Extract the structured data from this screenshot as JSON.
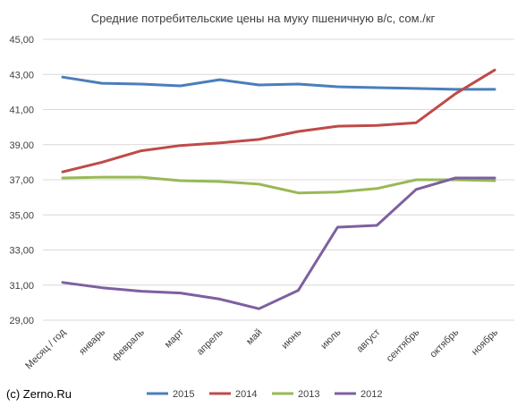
{
  "chart_data": {
    "type": "line",
    "title": "Средние потребительские цены на муку пшеничную в/с, сом./кг",
    "categories": [
      "Месяц / год",
      "январь",
      "февраль",
      "март",
      "апрель",
      "май",
      "июнь",
      "июль",
      "август",
      "сентябрь",
      "октябрь",
      "ноябрь"
    ],
    "ylim": [
      29,
      45
    ],
    "yticks": [
      "29,00",
      "31,00",
      "33,00",
      "35,00",
      "37,00",
      "39,00",
      "41,00",
      "43,00",
      "45,00"
    ],
    "grid": true,
    "legend_position": "bottom",
    "series": [
      {
        "name": "2015",
        "color": "#4a7ebb",
        "values": [
          42.85,
          42.5,
          42.45,
          42.35,
          42.7,
          42.4,
          42.45,
          42.3,
          42.25,
          42.2,
          42.15,
          42.15
        ]
      },
      {
        "name": "2014",
        "color": "#be4b48",
        "values": [
          37.45,
          38.0,
          38.65,
          38.95,
          39.1,
          39.3,
          39.75,
          40.05,
          40.1,
          40.25,
          41.9,
          43.25
        ]
      },
      {
        "name": "2013",
        "color": "#98b954",
        "values": [
          37.1,
          37.15,
          37.15,
          36.95,
          36.9,
          36.75,
          36.25,
          36.3,
          36.5,
          37.0,
          37.0,
          36.95
        ]
      },
      {
        "name": "2012",
        "color": "#7d60a0",
        "values": [
          31.15,
          30.85,
          30.65,
          30.55,
          30.2,
          29.65,
          30.7,
          34.3,
          34.4,
          36.45,
          37.1,
          37.1
        ]
      }
    ]
  },
  "footer": {
    "credit": "(c) Zerno.Ru"
  }
}
